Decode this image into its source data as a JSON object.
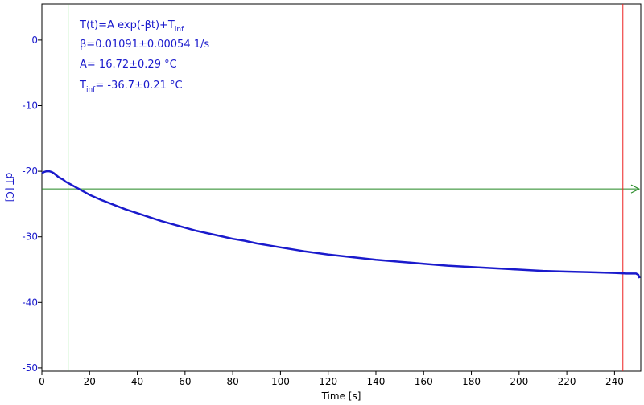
{
  "chart_data": {
    "type": "line",
    "xlabel": "Time [s]",
    "ylabel": "dT [C]",
    "xlim": [
      0,
      251
    ],
    "ylim": [
      -50.5,
      5.5
    ],
    "xticks": [
      "0",
      "20",
      "40",
      "60",
      "80",
      "100",
      "120",
      "140",
      "160",
      "180",
      "200",
      "220",
      "240"
    ],
    "yticks": [
      "0",
      "-10",
      "-20",
      "-30",
      "-40",
      "-50"
    ],
    "ylabel_color": "#1a1acc",
    "series_color": "#1a1acc",
    "fit_annotation": {
      "line1_main": "T(t)=A exp(-βt)+T",
      "line1_sub": "inf",
      "line2": "β=0.01091±0.00054 1/s",
      "line3": "A= 16.72±0.29 °C",
      "line4_main": "T",
      "line4_sub": "inf",
      "line4_rest": "= -36.7±0.21 °C"
    },
    "markers": {
      "left_cursor_x": 11,
      "left_cursor_color": "#22cc22",
      "right_cursor_x": 243.5,
      "right_cursor_color": "#ee2222",
      "horizontal_line_y": -22.7,
      "horizontal_line_color": "#228822"
    },
    "series": [
      {
        "x": [
          0,
          1,
          2,
          3,
          4,
          5,
          6,
          7,
          8,
          9,
          10,
          12,
          14,
          16,
          18,
          20,
          25,
          30,
          35,
          40,
          45,
          50,
          55,
          60,
          65,
          70,
          75,
          80,
          85,
          90,
          95,
          100,
          110,
          120,
          130,
          140,
          150,
          160,
          170,
          180,
          190,
          200,
          210,
          220,
          230,
          240,
          245,
          248,
          249,
          250,
          250.5
        ],
        "y": [
          -20.3,
          -20.1,
          -20.0,
          -20.0,
          -20.1,
          -20.3,
          -20.6,
          -20.9,
          -21.1,
          -21.3,
          -21.6,
          -22.0,
          -22.4,
          -22.8,
          -23.2,
          -23.6,
          -24.4,
          -25.1,
          -25.8,
          -26.4,
          -27.0,
          -27.6,
          -28.1,
          -28.6,
          -29.1,
          -29.5,
          -29.9,
          -30.3,
          -30.6,
          -31.0,
          -31.3,
          -31.6,
          -32.2,
          -32.7,
          -33.1,
          -33.5,
          -33.8,
          -34.1,
          -34.4,
          -34.6,
          -34.8,
          -35.0,
          -35.2,
          -35.3,
          -35.4,
          -35.5,
          -35.6,
          -35.6,
          -35.6,
          -35.8,
          -36.3
        ]
      }
    ]
  }
}
